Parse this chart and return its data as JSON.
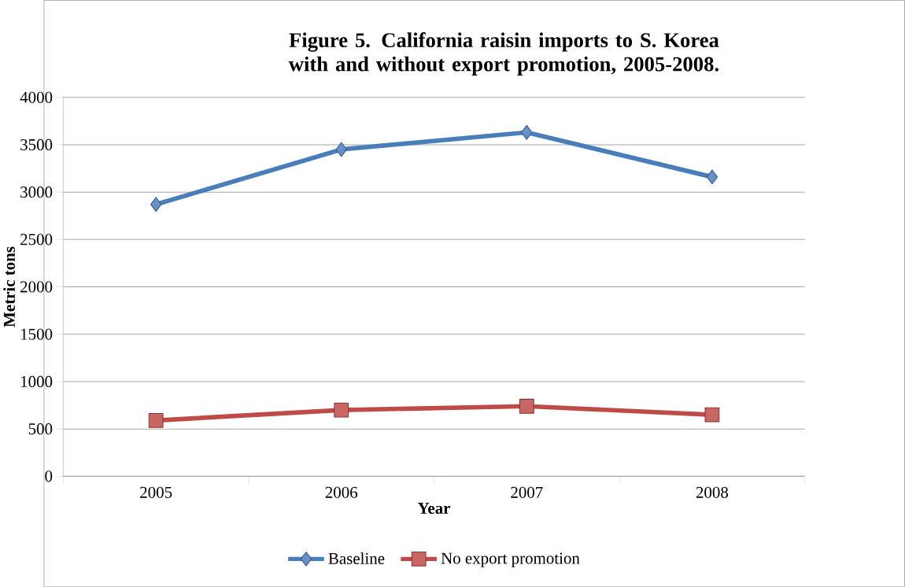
{
  "chart_data": {
    "type": "line",
    "title": "Figure 5.  California raisin imports to S. Korea with and without export promotion, 2005-2008.",
    "xlabel": "Year",
    "ylabel": "Metric tons",
    "categories": [
      "2005",
      "2006",
      "2007",
      "2008"
    ],
    "series": [
      {
        "name": "Baseline",
        "color": "#4a7ebb",
        "marker": "diamond",
        "values": [
          2870,
          3450,
          3630,
          3160
        ]
      },
      {
        "name": "No export promotion",
        "color": "#be4b48",
        "marker": "square",
        "values": [
          590,
          700,
          740,
          650
        ]
      }
    ],
    "ylim": [
      0,
      4000
    ],
    "yticks": [
      0,
      500,
      1000,
      1500,
      2000,
      2500,
      3000,
      3500,
      4000
    ],
    "grid": "y",
    "legend": "bottom"
  }
}
